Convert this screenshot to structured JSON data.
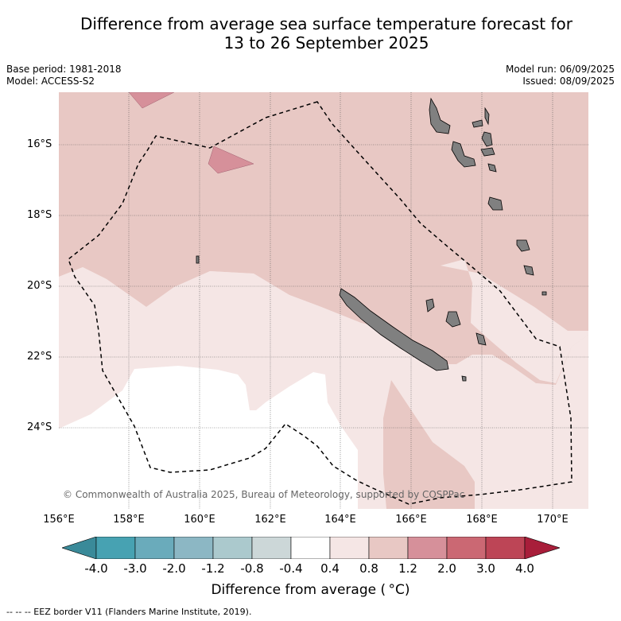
{
  "title_line1": "Difference from average sea surface temperature forecast for",
  "title_line2": "13 to 26 September 2025",
  "meta": {
    "base_period": "Base period: 1981-2018",
    "model": "Model: ACCESS-S2",
    "model_run": "Model run: 06/09/2025",
    "issued": "Issued: 08/09/2025"
  },
  "map": {
    "lat_labels": [
      "16°S",
      "18°S",
      "20°S",
      "22°S",
      "24°S"
    ],
    "lon_labels": [
      "156°E",
      "158°E",
      "160°E",
      "162°E",
      "164°E",
      "166°E",
      "168°E",
      "170°E"
    ],
    "copyright": "© Commonwealth of Australia 2025, Bureau of Meteorology, supported by COSPPac",
    "colors": {
      "band_0_4_0_8": "#f5e6e5",
      "band_0_8_1_2": "#e8c8c4",
      "band_1_2_2_0": "#d6909a",
      "land": "#808080",
      "eez_line": "#000000"
    }
  },
  "colorbar": {
    "ticks": [
      "-4.0",
      "-3.0",
      "-2.0",
      "-1.2",
      "-0.8",
      "-0.4",
      "0.4",
      "0.8",
      "1.2",
      "2.0",
      "3.0",
      "4.0"
    ],
    "colors": [
      "#3a8a99",
      "#47a2b2",
      "#6aabbb",
      "#8cb7c4",
      "#abc9cd",
      "#ccd7d8",
      "#ffffff",
      "#f5e6e5",
      "#e8c8c4",
      "#d6909a",
      "#cb6873",
      "#bd4556",
      "#a81e3a"
    ],
    "title": "Difference from average ( °C)"
  },
  "footer": "--  --  -- EEZ border V11 (Flanders Marine Institute, 2019)."
}
